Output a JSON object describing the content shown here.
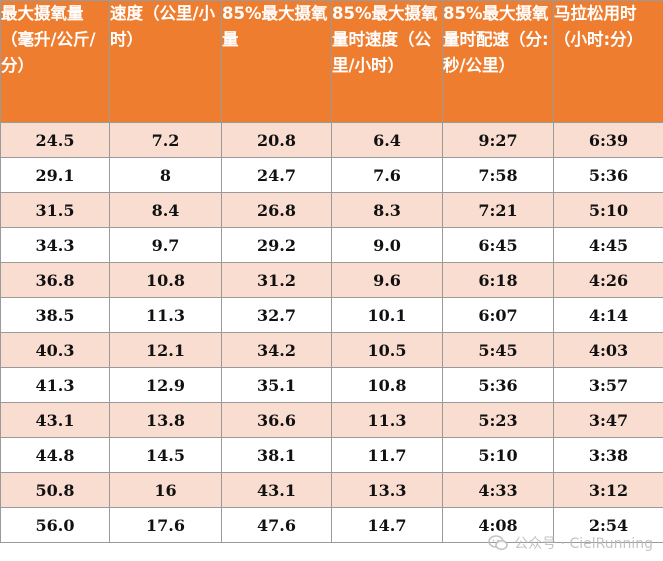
{
  "table": {
    "headers": [
      "最大摄氧量（毫升/公斤/分）",
      "速度（公里/小时）",
      "85%最大摄氧量",
      "85%最大摄氧量时速度（公里/小时）",
      "85%最大摄氧量时配速（分:秒/公里）",
      "马拉松用时（小时:分）"
    ],
    "rows": [
      [
        "24.5",
        "7.2",
        "20.8",
        "6.4",
        "9:27",
        "6:39"
      ],
      [
        "29.1",
        "8",
        "24.7",
        "7.6",
        "7:58",
        "5:36"
      ],
      [
        "31.5",
        "8.4",
        "26.8",
        "8.3",
        "7:21",
        "5:10"
      ],
      [
        "34.3",
        "9.7",
        "29.2",
        "9.0",
        "6:45",
        "4:45"
      ],
      [
        "36.8",
        "10.8",
        "31.2",
        "9.6",
        "6:18",
        "4:26"
      ],
      [
        "38.5",
        "11.3",
        "32.7",
        "10.1",
        "6:07",
        "4:14"
      ],
      [
        "40.3",
        "12.1",
        "34.2",
        "10.5",
        "5:45",
        "4:03"
      ],
      [
        "41.3",
        "12.9",
        "35.1",
        "10.8",
        "5:36",
        "3:57"
      ],
      [
        "43.1",
        "13.8",
        "36.6",
        "11.3",
        "5:23",
        "3:47"
      ],
      [
        "44.8",
        "14.5",
        "38.1",
        "11.7",
        "5:10",
        "3:38"
      ],
      [
        "50.8",
        "16",
        "43.1",
        "13.3",
        "4:33",
        "3:12"
      ],
      [
        "56.0",
        "17.6",
        "47.6",
        "14.7",
        "4:08",
        "2:54"
      ]
    ]
  },
  "watermark": {
    "text": "公众号 · CielRunning",
    "icon": "wechat-icon"
  },
  "colors": {
    "header_bg": "#ee7d30",
    "header_text": "#ffffff",
    "shade_row": "#f9ddd0",
    "plain_row": "#ffffff",
    "border": "#9a9a9a"
  }
}
